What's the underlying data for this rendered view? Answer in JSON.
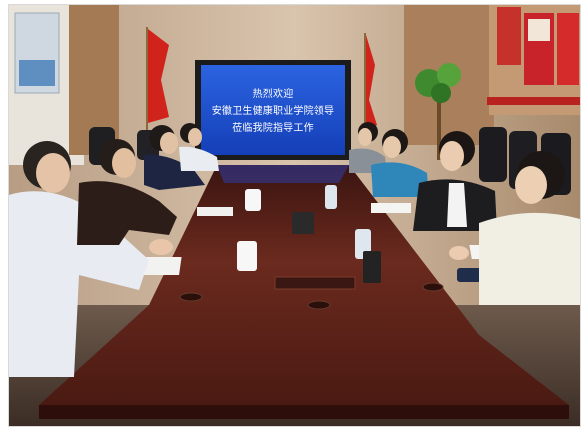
{
  "photo": {
    "scene": "meeting-room",
    "screen": {
      "lines": [
        "热烈欢迎",
        "安徽卫生健康职业学院领导",
        "莅临我院指导工作"
      ]
    }
  },
  "colors": {
    "wall": "#cdb59c",
    "table": "#5a2018",
    "screen": "#1d4ed8",
    "flag": "#d0231b"
  }
}
